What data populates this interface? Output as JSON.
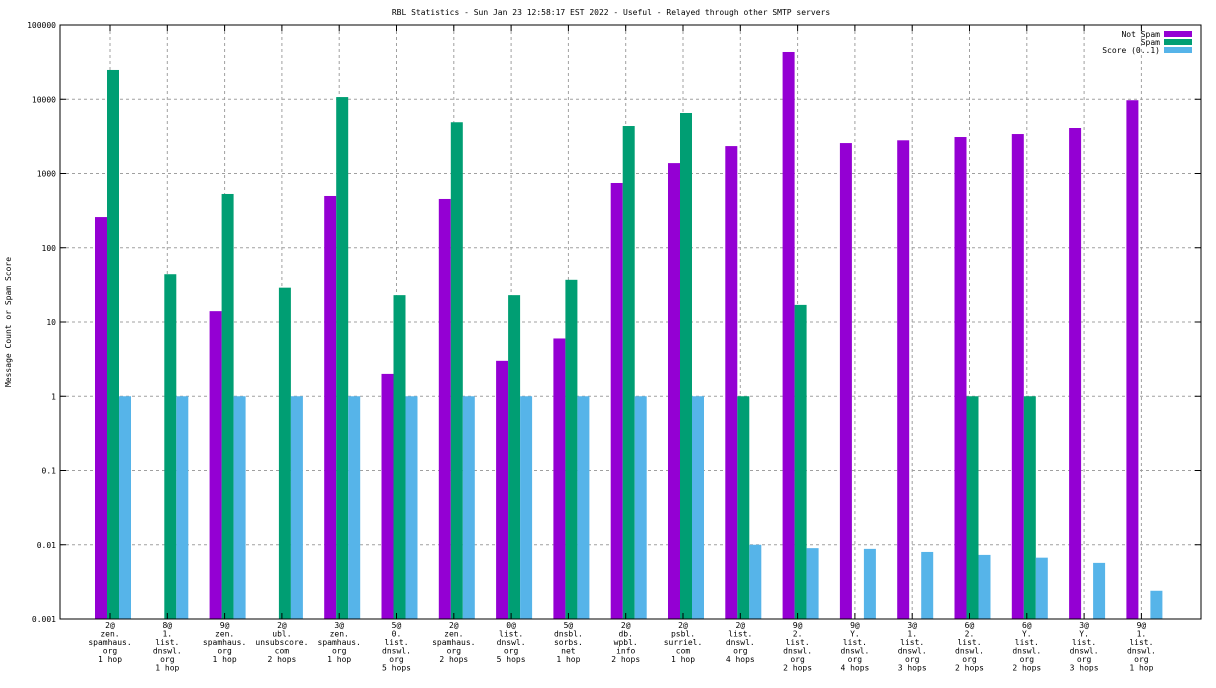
{
  "chart_data": {
    "type": "bar",
    "title": "RBL Statistics - Sun Jan 23 12:58:17 EST 2022 - Useful - Relayed through other SMTP servers",
    "xlabel": "",
    "ylabel": "Message Count or Spam Score",
    "yscale": "log",
    "ylim": [
      0.001,
      100000
    ],
    "yticks": [
      "0.001",
      "0.01",
      "0.1",
      "1",
      "10",
      "100",
      "1000",
      "10000",
      "100000"
    ],
    "grid": true,
    "legend_position": "top-right",
    "categories": [
      [
        "2@",
        "zen.",
        "spamhaus.",
        "org",
        "1 hop"
      ],
      [
        "8@",
        "1.",
        "list.",
        "dnswl.",
        "org",
        "1 hop"
      ],
      [
        "9@",
        "zen.",
        "spamhaus.",
        "org",
        "1 hop"
      ],
      [
        "2@",
        "ubl.",
        "unsubscore.",
        "com",
        "2 hops"
      ],
      [
        "3@",
        "zen.",
        "spamhaus.",
        "org",
        "1 hop"
      ],
      [
        "5@",
        "0.",
        "list.",
        "dnswl.",
        "org",
        "5 hops"
      ],
      [
        "2@",
        "zen.",
        "spamhaus.",
        "org",
        "2 hops"
      ],
      [
        "0@",
        "list.",
        "dnswl.",
        "org",
        "5 hops"
      ],
      [
        "5@",
        "dnsbl.",
        "sorbs.",
        "net",
        "1 hop"
      ],
      [
        "2@",
        "db.",
        "wpbl.",
        "info",
        "2 hops"
      ],
      [
        "2@",
        "psbl.",
        "surriel.",
        "com",
        "1 hop"
      ],
      [
        "2@",
        "list.",
        "dnswl.",
        "org",
        "4 hops"
      ],
      [
        "9@",
        "2.",
        "list.",
        "dnswl.",
        "org",
        "2 hops"
      ],
      [
        "9@",
        "Y.",
        "list.",
        "dnswl.",
        "org",
        "4 hops"
      ],
      [
        "3@",
        "1.",
        "list.",
        "dnswl.",
        "org",
        "3 hops"
      ],
      [
        "6@",
        "2.",
        "list.",
        "dnswl.",
        "org",
        "2 hops"
      ],
      [
        "6@",
        "Y.",
        "list.",
        "dnswl.",
        "org",
        "2 hops"
      ],
      [
        "3@",
        "Y.",
        "list.",
        "dnswl.",
        "org",
        "3 hops"
      ],
      [
        "9@",
        "1.",
        "list.",
        "dnswl.",
        "org",
        "1 hop"
      ]
    ],
    "series": [
      {
        "name": "Not Spam",
        "color": "#9400d3",
        "values": [
          259,
          0,
          14,
          0,
          498,
          2,
          454,
          3,
          6,
          745,
          1380,
          2340,
          43300,
          2570,
          2800,
          3100,
          3400,
          4100,
          9700
        ]
      },
      {
        "name": "Spam",
        "color": "#009e73",
        "values": [
          24800,
          44,
          530,
          29,
          10700,
          23,
          4900,
          23,
          37,
          4360,
          6530,
          1,
          17,
          0,
          0,
          1,
          1,
          0,
          0
        ]
      },
      {
        "name": "Score (0..1)",
        "color": "#56b4e9",
        "values": [
          1,
          1,
          1,
          1,
          1,
          1,
          1,
          1,
          1,
          1,
          1,
          0.01,
          0.009,
          0.0088,
          0.008,
          0.0073,
          0.0067,
          0.0057,
          0.0024
        ]
      }
    ]
  }
}
